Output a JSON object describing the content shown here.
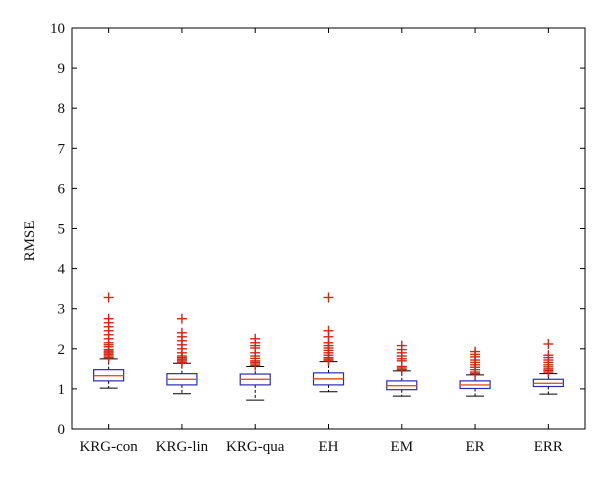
{
  "colors": {
    "box": "#2b2bb0",
    "median": "#e0581c",
    "whisker": "#000000",
    "outlier": "#cc2a14",
    "axis": "#000000"
  },
  "chart_data": {
    "type": "boxplot",
    "title": "",
    "xlabel": "",
    "ylabel": "RMSE",
    "ylim": [
      0,
      10
    ],
    "yticks": [
      0,
      1,
      2,
      3,
      4,
      5,
      6,
      7,
      8,
      9,
      10
    ],
    "grid": false,
    "legend": "none",
    "categories": [
      "KRG-con",
      "KRG-lin",
      "KRG-qua",
      "EH",
      "EM",
      "ER",
      "ERR"
    ],
    "boxes": [
      {
        "name": "KRG-con",
        "whisker_low": 1.02,
        "q1": 1.2,
        "median": 1.33,
        "q3": 1.48,
        "whisker_high": 1.75,
        "outliers": [
          1.78,
          1.82,
          1.86,
          1.9,
          1.94,
          1.98,
          2.05,
          2.1,
          2.15,
          2.25,
          2.35,
          2.45,
          2.55,
          2.65,
          2.75,
          3.28
        ]
      },
      {
        "name": "KRG-lin",
        "whisker_low": 0.88,
        "q1": 1.1,
        "median": 1.24,
        "q3": 1.38,
        "whisker_high": 1.64,
        "outliers": [
          1.66,
          1.7,
          1.74,
          1.78,
          1.82,
          1.9,
          2.0,
          2.1,
          2.2,
          2.3,
          2.4,
          2.75
        ]
      },
      {
        "name": "KRG-qua",
        "whisker_low": 0.72,
        "q1": 1.1,
        "median": 1.24,
        "q3": 1.37,
        "whisker_high": 1.56,
        "outliers": [
          1.58,
          1.62,
          1.66,
          1.7,
          1.76,
          1.82,
          1.9,
          2.02,
          2.08,
          2.15,
          2.25
        ]
      },
      {
        "name": "EH",
        "whisker_low": 0.93,
        "q1": 1.1,
        "median": 1.25,
        "q3": 1.4,
        "whisker_high": 1.68,
        "outliers": [
          1.7,
          1.74,
          1.78,
          1.84,
          1.9,
          1.96,
          2.02,
          2.08,
          2.15,
          2.3,
          2.45,
          3.28
        ]
      },
      {
        "name": "EM",
        "whisker_low": 0.82,
        "q1": 0.98,
        "median": 1.08,
        "q3": 1.2,
        "whisker_high": 1.45,
        "outliers": [
          1.48,
          1.52,
          1.56,
          1.7,
          1.75,
          1.82,
          1.9,
          1.98,
          2.08
        ]
      },
      {
        "name": "ER",
        "whisker_low": 0.82,
        "q1": 1.01,
        "median": 1.1,
        "q3": 1.2,
        "whisker_high": 1.35,
        "outliers": [
          1.38,
          1.42,
          1.48,
          1.54,
          1.6,
          1.66,
          1.72,
          1.8,
          1.86,
          1.93
        ]
      },
      {
        "name": "ERR",
        "whisker_low": 0.87,
        "q1": 1.06,
        "median": 1.14,
        "q3": 1.24,
        "whisker_high": 1.38,
        "outliers": [
          1.42,
          1.46,
          1.5,
          1.55,
          1.6,
          1.66,
          1.72,
          1.78,
          1.84,
          2.12
        ]
      }
    ]
  }
}
